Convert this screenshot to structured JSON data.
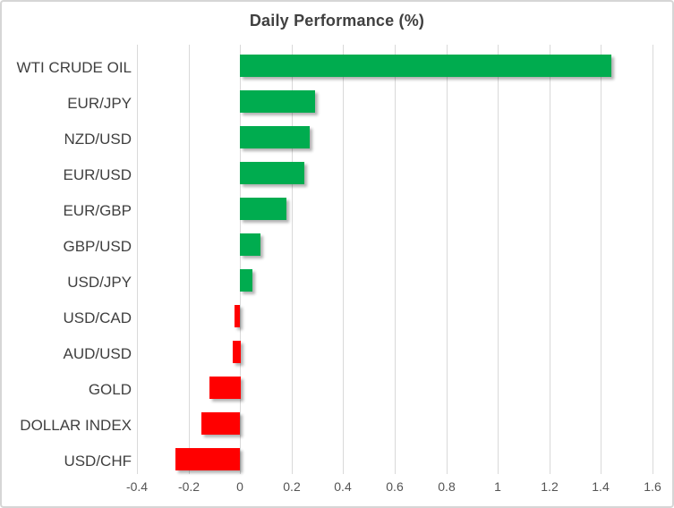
{
  "title": "Daily Performance (%)",
  "chart_data": {
    "type": "bar",
    "orientation": "horizontal",
    "title": "Daily Performance (%)",
    "categories": [
      "WTI CRUDE OIL",
      "EUR/JPY",
      "NZD/USD",
      "EUR/USD",
      "EUR/GBP",
      "GBP/USD",
      "USD/JPY",
      "USD/CAD",
      "AUD/USD",
      "GOLD",
      "DOLLAR INDEX",
      "USD/CHF"
    ],
    "values": [
      1.44,
      0.29,
      0.27,
      0.25,
      0.18,
      0.08,
      0.05,
      -0.02,
      -0.03,
      -0.12,
      -0.15,
      -0.25
    ],
    "xlabel": "",
    "ylabel": "",
    "xlim": [
      -0.4,
      1.6
    ],
    "x_ticks": [
      -0.4,
      -0.2,
      0,
      0.2,
      0.4,
      0.6,
      0.8,
      1,
      1.2,
      1.4,
      1.6
    ],
    "x_tick_labels": [
      "-0.4",
      "-0.2",
      "0",
      "0.2",
      "0.4",
      "0.6",
      "0.8",
      "1",
      "1.2",
      "1.4",
      "1.6"
    ],
    "grid": "vertical-only",
    "legend": "none",
    "colors": {
      "positive": "#00AC4F",
      "negative": "#FF0000",
      "gridline": "#D9D9D9",
      "title_text": "#404040",
      "category_text": "#3F3F3F",
      "tick_text": "#545454",
      "background": "#FFFFFF",
      "border": "#D6D6D6"
    }
  }
}
